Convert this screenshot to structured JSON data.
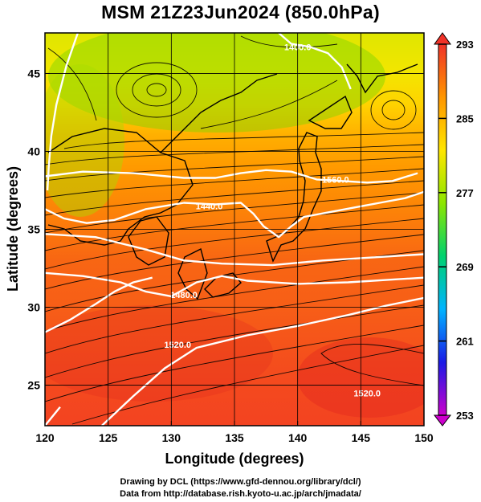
{
  "title": "MSM 21Z23Jun2024 (850.0hPa)",
  "credits": [
    "Drawing by DCL (https://www.gfd-dennou.org/library/dcl/)",
    "Data from http://database.rish.kyoto-u.ac.jp/arch/jmadata/"
  ],
  "chart_data": {
    "type": "heatmap",
    "title": "MSM 21Z23Jun2024 (850.0hPa)",
    "xlabel": "Longitude (degrees)",
    "ylabel": "Latitude  (degrees)",
    "xlim": [
      120,
      150
    ],
    "ylim": [
      22.4,
      47.6
    ],
    "x_ticks": [
      120,
      125,
      130,
      135,
      140,
      145,
      150
    ],
    "y_ticks": [
      25,
      30,
      35,
      40,
      45
    ],
    "grid": true,
    "colorbar": {
      "min": 253,
      "max": 293,
      "ticks": [
        253,
        261,
        269,
        277,
        285,
        293
      ],
      "colors": [
        "#cc00cc",
        "#1a1ae6",
        "#00b4ff",
        "#00d26e",
        "#8ce600",
        "#ffe600",
        "#ff9600",
        "#f03228"
      ]
    },
    "temperature_field": [
      {
        "lat": 22.4,
        "value": 292
      },
      {
        "lat": 26,
        "value": 291.5
      },
      {
        "lat": 30,
        "value": 290.5
      },
      {
        "lat": 33,
        "value": 290
      },
      {
        "lat": 35,
        "value": 289
      },
      {
        "lat": 37,
        "value": 288
      },
      {
        "lat": 39,
        "value": 287
      },
      {
        "lat": 41,
        "value": 285.5
      },
      {
        "lat": 43,
        "value": 283
      },
      {
        "lat": 45,
        "value": 281
      },
      {
        "lat": 47.6,
        "value": 280
      }
    ],
    "contours": [
      {
        "label": "1400.0",
        "points": [
          [
            138.5,
            47.6
          ],
          [
            139.5,
            46.9
          ],
          [
            141.0,
            46.7
          ],
          [
            142.4,
            46.3
          ],
          [
            143.5,
            45.4
          ],
          [
            144.2,
            44.0
          ]
        ]
      },
      {
        "label": "1400.0",
        "points": [
          [
            122.6,
            47.6
          ],
          [
            121.7,
            45.5
          ],
          [
            120.9,
            43.0
          ],
          [
            120.5,
            41.0
          ],
          [
            120.3,
            39.0
          ],
          [
            120.2,
            37.5
          ]
        ]
      },
      {
        "label": "1440.0",
        "points": [
          [
            120,
            36.3
          ],
          [
            121.5,
            35.7
          ],
          [
            123.3,
            35.4
          ],
          [
            125.5,
            35.6
          ],
          [
            128.0,
            36.3
          ],
          [
            131.0,
            36.7
          ],
          [
            133.5,
            36.6
          ],
          [
            135.5,
            36.7
          ],
          [
            136.5,
            36.0
          ],
          [
            137.3,
            35.2
          ],
          [
            138.5,
            34.5
          ],
          [
            139.5,
            35.2
          ],
          [
            140.5,
            35.8
          ],
          [
            142.5,
            36.1
          ],
          [
            144.5,
            36.4
          ],
          [
            146.5,
            36.7
          ],
          [
            148.5,
            37.0
          ],
          [
            150,
            37.4
          ]
        ]
      },
      {
        "label": "1480.0",
        "points": [
          [
            120,
            34.7
          ],
          [
            124,
            34.5
          ],
          [
            128,
            33.7
          ],
          [
            131,
            33.0
          ],
          [
            134,
            32.8
          ],
          [
            138,
            32.7
          ],
          [
            142,
            33.0
          ],
          [
            146,
            33.2
          ],
          [
            150,
            33.4
          ]
        ]
      },
      {
        "label": "1480.0",
        "points": [
          [
            120,
            32.2
          ],
          [
            123,
            32.0
          ],
          [
            126,
            31.6
          ],
          [
            128,
            31.0
          ],
          [
            130,
            30.7
          ],
          [
            132,
            31.6
          ],
          [
            134,
            32.0
          ],
          [
            136,
            31.7
          ],
          [
            140,
            31.5
          ],
          [
            144,
            31.6
          ],
          [
            148,
            31.8
          ],
          [
            150,
            31.9
          ]
        ]
      },
      {
        "label": "1520.0",
        "points": [
          [
            120,
            28.4
          ],
          [
            122,
            29.2
          ],
          [
            124,
            30.2
          ],
          [
            125.5,
            31.0
          ],
          [
            127,
            31.6
          ],
          [
            128.5,
            31.9
          ]
        ]
      },
      {
        "label": "1520.0",
        "points": [
          [
            120,
            22.4
          ],
          [
            121.2,
            23.6
          ]
        ]
      },
      {
        "label": "1520.0",
        "points": [
          [
            124.5,
            22.4
          ],
          [
            127,
            24.3
          ],
          [
            129.5,
            26.1
          ],
          [
            132,
            27.4
          ],
          [
            136,
            28.2
          ],
          [
            140,
            28.8
          ],
          [
            144,
            29.5
          ],
          [
            147,
            30.1
          ],
          [
            150,
            30.6
          ]
        ]
      },
      {
        "label": "1560.0",
        "points": [
          [
            120,
            38.4
          ],
          [
            123,
            38.7
          ],
          [
            127,
            38.6
          ],
          [
            131,
            38.3
          ],
          [
            133.5,
            38.3
          ],
          [
            135.5,
            38.6
          ],
          [
            137.5,
            38.8
          ],
          [
            139.5,
            38.7
          ],
          [
            141.5,
            38.2
          ],
          [
            143.5,
            38.1
          ],
          [
            145.5,
            38.0
          ],
          [
            147.5,
            38.1
          ],
          [
            149.5,
            38.6
          ]
        ]
      }
    ],
    "contour_labels": [
      {
        "text": "1400.0",
        "lon": 140.0,
        "lat": 46.7
      },
      {
        "text": "1560.0",
        "lon": 143.0,
        "lat": 38.2
      },
      {
        "text": "1440.0",
        "lon": 133.0,
        "lat": 36.5
      },
      {
        "text": "1480.0",
        "lon": 131.0,
        "lat": 30.8
      },
      {
        "text": "1520.0",
        "lon": 130.5,
        "lat": 27.6
      },
      {
        "text": "1520.0",
        "lon": 145.5,
        "lat": 24.5
      }
    ]
  }
}
